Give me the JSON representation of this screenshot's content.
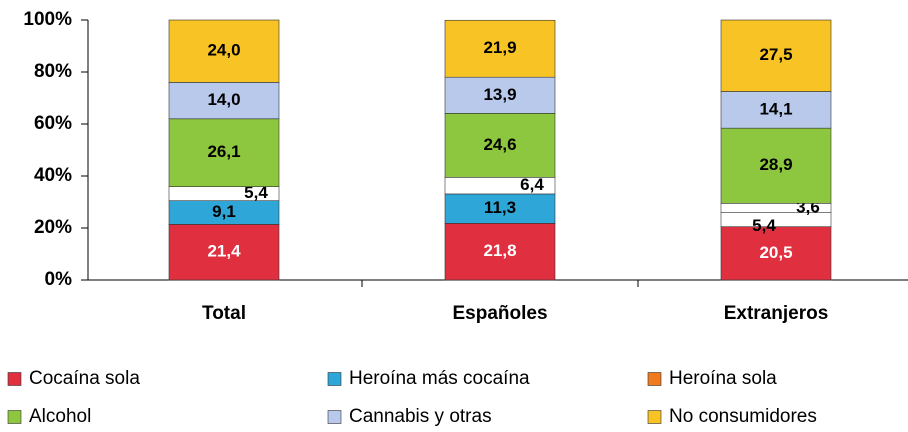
{
  "chart_data": {
    "type": "stacked_bar",
    "categories": [
      "Total",
      "Españoles",
      "Extranjeros"
    ],
    "series": [
      {
        "name": "Cocaína sola",
        "color": "#e0303f",
        "values": [
          21.4,
          21.8,
          20.5
        ],
        "value_labels": [
          "21,4",
          "21,8",
          "20,5"
        ]
      },
      {
        "name": "Heroína más cocaína",
        "color": "#2ea6d8",
        "point_colors": [
          "#2ea6d8",
          "#2ea6d8",
          "#ffffff"
        ],
        "values": [
          9.1,
          11.3,
          5.4
        ],
        "value_labels": [
          "9,1",
          "11,3",
          "5,4"
        ]
      },
      {
        "name": "Heroína sola",
        "color": "#f07a1e",
        "point_colors": [
          "#ffffff",
          "#ffffff",
          "#ffffff"
        ],
        "values": [
          5.4,
          6.4,
          3.6
        ],
        "value_labels": [
          "5,4",
          "6,4",
          "3,6"
        ]
      },
      {
        "name": "Alcohol",
        "color": "#8dc63f",
        "values": [
          26.1,
          24.6,
          28.9
        ],
        "value_labels": [
          "26,1",
          "24,6",
          "28,9"
        ]
      },
      {
        "name": "Cannabis y otras",
        "color": "#b9c9ec",
        "values": [
          14.0,
          13.9,
          14.1
        ],
        "value_labels": [
          "14,0",
          "13,9",
          "14,1"
        ]
      },
      {
        "name": "No consumidores",
        "color": "#f8c425",
        "values": [
          24.0,
          21.9,
          27.5
        ],
        "value_labels": [
          "24,0",
          "21,9",
          "27,5"
        ]
      }
    ],
    "ylim": [
      0,
      100
    ],
    "yticks": [
      {
        "value": 0,
        "label": "0%"
      },
      {
        "value": 20,
        "label": "20%"
      },
      {
        "value": 40,
        "label": "40%"
      },
      {
        "value": 60,
        "label": "60%"
      },
      {
        "value": 80,
        "label": "80%"
      },
      {
        "value": 100,
        "label": "100%"
      }
    ],
    "legend": "bottom"
  }
}
